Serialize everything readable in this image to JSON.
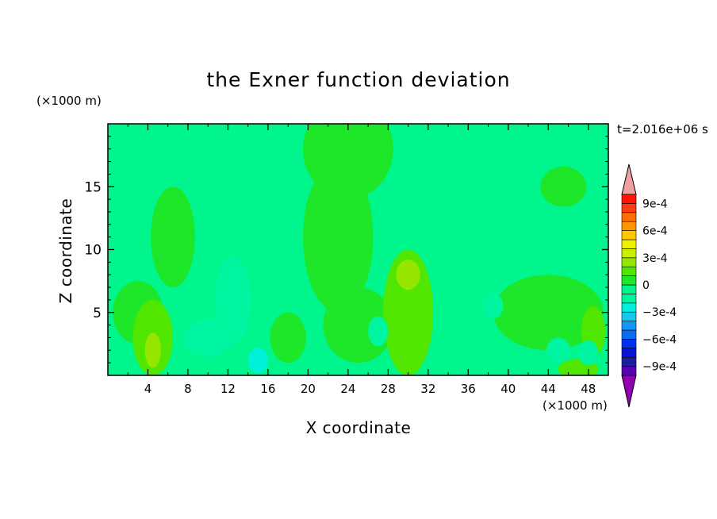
{
  "chart_data": {
    "type": "heatmap",
    "title": "the Exner function deviation",
    "xlabel": "X coordinate",
    "ylabel": "Z coordinate",
    "x_unit": "(×1000 m)",
    "z_unit": "(×1000 m)",
    "time_label": "t=2.016e+06 s",
    "xlim": [
      0,
      50
    ],
    "ylim": [
      0,
      20
    ],
    "x_ticks": [
      4,
      8,
      12,
      16,
      20,
      24,
      28,
      32,
      36,
      40,
      44,
      48
    ],
    "y_ticks": [
      5,
      10,
      15
    ],
    "colorbar": {
      "levels": [
        -0.001,
        -0.0009,
        -0.0008,
        -0.0007,
        -0.0006,
        -0.0005,
        -0.0004,
        -0.0003,
        -0.0002,
        -0.0001,
        0,
        0.0001,
        0.0002,
        0.0003,
        0.0004,
        0.0005,
        0.0006,
        0.0007,
        0.0008,
        0.0009,
        0.001
      ],
      "colors": [
        "#5a00b4",
        "#1c1f9c",
        "#0a14d2",
        "#0032f0",
        "#0a6ef0",
        "#1496f5",
        "#14c8f0",
        "#00f0dc",
        "#00f5a0",
        "#00f58c",
        "#1ee628",
        "#50e600",
        "#96e600",
        "#c8f000",
        "#f0f000",
        "#ffc800",
        "#ff9600",
        "#ff6e00",
        "#ff3c14",
        "#ff140a"
      ],
      "under_color": "#9000b0",
      "over_color": "#f0a0a0",
      "tick_values": [
        "9e-4",
        "6e-4",
        "3e-4",
        "0",
        "−3e-4",
        "−6e-4",
        "−9e-4"
      ]
    },
    "field": {
      "background_value": -5e-05,
      "features": [
        {
          "x": 24,
          "z": 18,
          "rx": 4.5,
          "rz": 4,
          "value": 5e-05
        },
        {
          "x": 23,
          "z": 11,
          "rx": 3.5,
          "rz": 6,
          "value": 5e-05
        },
        {
          "x": 25,
          "z": 4,
          "rx": 3.5,
          "rz": 3,
          "value": 5e-05
        },
        {
          "x": 6.5,
          "z": 11,
          "rx": 2.2,
          "rz": 4,
          "value": 5e-05
        },
        {
          "x": 45.5,
          "z": 15,
          "rx": 2.3,
          "rz": 1.6,
          "value": 5e-05
        },
        {
          "x": 44,
          "z": 5,
          "rx": 5.5,
          "rz": 3,
          "value": 5e-05
        },
        {
          "x": 3,
          "z": 5,
          "rx": 2.5,
          "rz": 2.5,
          "value": 5e-05
        },
        {
          "x": 18,
          "z": 3,
          "rx": 1.8,
          "rz": 2,
          "value": 5e-05
        },
        {
          "x": 30,
          "z": 5,
          "rx": 2.5,
          "rz": 5,
          "value": 0.00015
        },
        {
          "x": 30,
          "z": 8,
          "rx": 1.2,
          "rz": 1.2,
          "value": 0.00025
        },
        {
          "x": 4.5,
          "z": 3,
          "rx": 2,
          "rz": 3,
          "value": 0.00015
        },
        {
          "x": 4.5,
          "z": 2,
          "rx": 0.8,
          "rz": 1.4,
          "value": 0.00025
        },
        {
          "x": 48.5,
          "z": 3.5,
          "rx": 1.2,
          "rz": 2,
          "value": 0.00015
        },
        {
          "x": 47,
          "z": 0.5,
          "rx": 2,
          "rz": 0.8,
          "value": 0.00015
        },
        {
          "x": 12.5,
          "z": 6,
          "rx": 1.8,
          "rz": 3.5,
          "value": -0.00015
        },
        {
          "x": 10,
          "z": 3,
          "rx": 2.5,
          "rz": 1.5,
          "value": -0.00015
        },
        {
          "x": 15,
          "z": 1.2,
          "rx": 1,
          "rz": 1,
          "value": -0.00025
        },
        {
          "x": 27,
          "z": 3.5,
          "rx": 1,
          "rz": 1.2,
          "value": -0.00015
        },
        {
          "x": 38.5,
          "z": 5.5,
          "rx": 1,
          "rz": 1,
          "value": -0.00015
        },
        {
          "x": 45,
          "z": 2,
          "rx": 1.2,
          "rz": 1,
          "value": -0.00015
        },
        {
          "x": 48,
          "z": 1.8,
          "rx": 1,
          "rz": 1,
          "value": -0.00015
        }
      ]
    }
  }
}
